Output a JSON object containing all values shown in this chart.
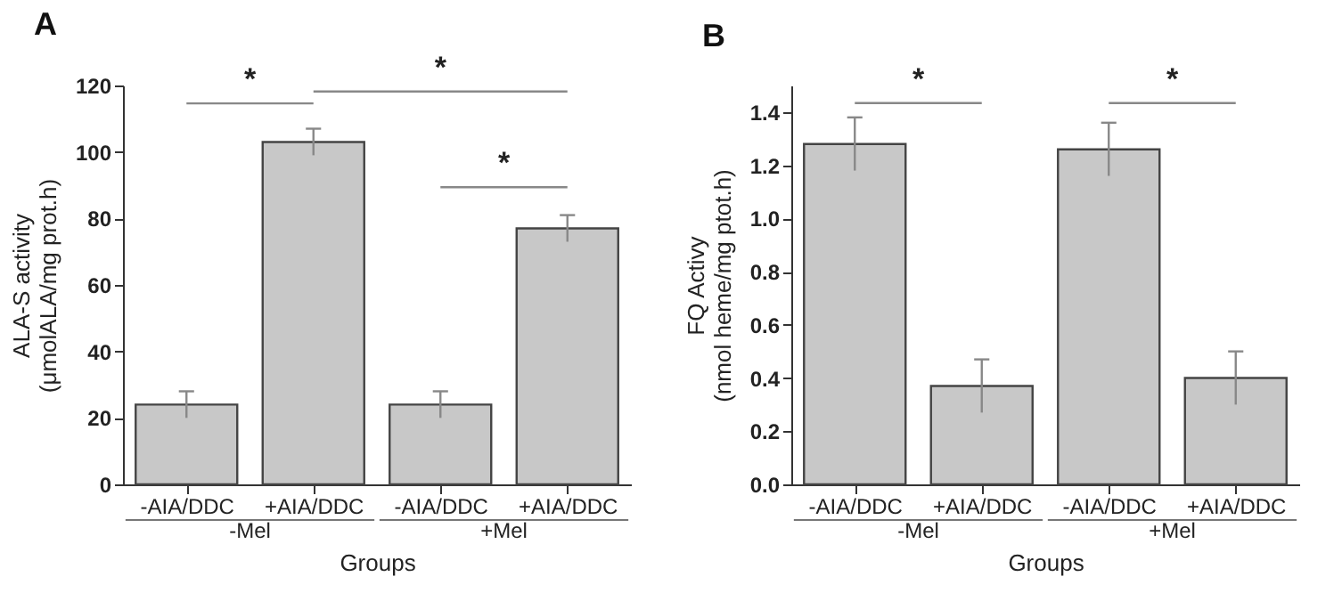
{
  "chart_data": [
    {
      "type": "bar",
      "title": "A",
      "xlabel": "Groups",
      "ylabel": "ALA-S activity\n(μmolALA/mg prot.h)",
      "categories": [
        "-AIA/DDC",
        "+AIA/DDC",
        "-AIA/DDC",
        "+AIA/DDC"
      ],
      "values": [
        24,
        103,
        24,
        77
      ],
      "errors": [
        4,
        4,
        4,
        4
      ],
      "color": "#c8c8c8",
      "ylim": [
        0,
        120
      ],
      "yticks": [
        0,
        20,
        40,
        60,
        80,
        100,
        120
      ],
      "grid": false,
      "annotations": [
        "*",
        "*",
        "*",
        "-Mel",
        "+Mel"
      ]
    },
    {
      "type": "bar",
      "title": "B",
      "xlabel": "Groups",
      "ylabel": "FQ Activy\n(nmol heme/mg ptot.h)",
      "categories": [
        "-AIA/DDC",
        "+AIA/DDC",
        "-AIA/DDC",
        "+AIA/DDC"
      ],
      "values": [
        1.28,
        0.37,
        1.26,
        0.4
      ],
      "errors": [
        0.1,
        0.1,
        0.1,
        0.1
      ],
      "color": "#c8c8c8",
      "ylim": [
        0,
        1.5
      ],
      "yticks": [
        {
          "value": 0,
          "label": "0.0"
        },
        0.2,
        0.4,
        0.6,
        0.8,
        {
          "value": 1,
          "label": "1.0"
        },
        1.2,
        1.4
      ],
      "grid": false,
      "annotations": [
        "*",
        "*",
        "-Mel",
        "+Mel"
      ]
    }
  ]
}
